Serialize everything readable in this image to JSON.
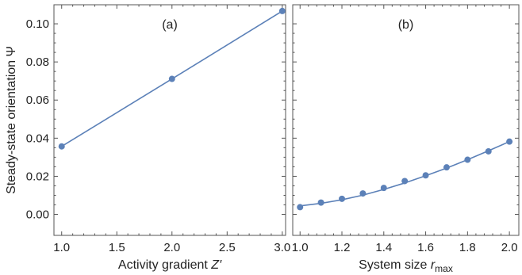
{
  "chart_data": [
    {
      "type": "scatter",
      "panel_label": "(a)",
      "ylabel": "Steady-state orientation Ψ",
      "xlabel_main": "Activity gradient ",
      "xlabel_var": "Z′",
      "xlabel_sub": "",
      "xlim": [
        0.93,
        3.03
      ],
      "ylim": [
        -0.011,
        0.11
      ],
      "xticks": [
        1.0,
        1.5,
        2.0,
        2.5,
        3.0
      ],
      "xtick_labels": [
        "1.0",
        "1.5",
        "2.0",
        "2.5",
        "3.0"
      ],
      "yticks": [
        0.0,
        0.02,
        0.04,
        0.06,
        0.08,
        0.1
      ],
      "ytick_labels": [
        "0.00",
        "0.02",
        "0.04",
        "0.06",
        "0.08",
        "0.10"
      ],
      "series": [
        {
          "points": [
            [
              1.0,
              0.0357
            ],
            [
              2.0,
              0.0711
            ],
            [
              3.0,
              0.1067
            ]
          ],
          "fit_line": [
            [
              1.0,
              0.0357
            ],
            [
              2.0,
              0.0711
            ],
            [
              3.0,
              0.1067
            ]
          ]
        }
      ]
    },
    {
      "type": "scatter",
      "panel_label": "(b)",
      "xlabel_main": "System size ",
      "xlabel_var": "r",
      "xlabel_sub": "max",
      "xlim": [
        0.965,
        2.045
      ],
      "ylim": [
        -0.011,
        0.11
      ],
      "xticks": [
        1.0,
        1.2,
        1.4,
        1.6,
        1.8,
        2.0
      ],
      "xtick_labels": [
        "1.0",
        "1.2",
        "1.4",
        "1.6",
        "1.8",
        "2.0"
      ],
      "yticks": [
        0.0,
        0.02,
        0.04,
        0.06,
        0.08,
        0.1
      ],
      "series": [
        {
          "points": [
            [
              1.0,
              0.0038
            ],
            [
              1.1,
              0.0062
            ],
            [
              1.2,
              0.0082
            ],
            [
              1.3,
              0.011
            ],
            [
              1.4,
              0.0139
            ],
            [
              1.5,
              0.0175
            ],
            [
              1.6,
              0.0205
            ],
            [
              1.7,
              0.0247
            ],
            [
              1.8,
              0.0287
            ],
            [
              1.9,
              0.0331
            ],
            [
              2.0,
              0.0382
            ]
          ],
          "fit_line": [
            [
              1.0,
              0.0045
            ],
            [
              1.1,
              0.0058
            ],
            [
              1.2,
              0.0077
            ],
            [
              1.3,
              0.0101
            ],
            [
              1.4,
              0.0131
            ],
            [
              1.5,
              0.0165
            ],
            [
              1.6,
              0.0203
            ],
            [
              1.7,
              0.0243
            ],
            [
              1.8,
              0.0287
            ],
            [
              1.9,
              0.0334
            ],
            [
              2.0,
              0.0382
            ]
          ]
        }
      ]
    }
  ],
  "colors": {
    "series": "#5c81b8",
    "frame": "#555555",
    "text": "#222222"
  }
}
